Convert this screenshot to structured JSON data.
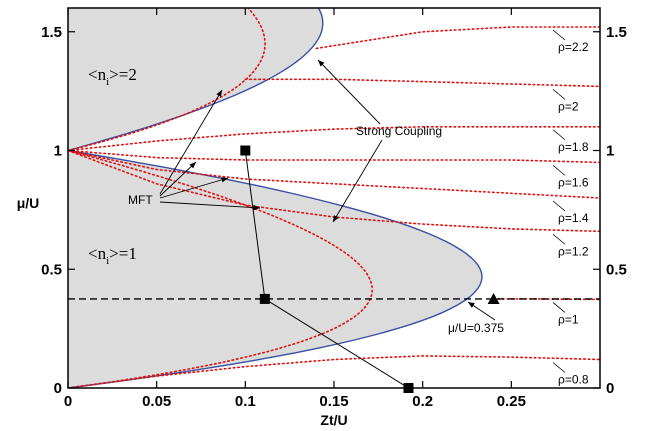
{
  "chart_data": {
    "type": "line",
    "xlabel": "Zt/U",
    "ylabel": "μ/U",
    "xlim": [
      0,
      0.3
    ],
    "ylim": [
      0,
      1.6
    ],
    "xticks": [
      "0",
      "0.05",
      "0.1",
      "0.15",
      "0.2",
      "0.25"
    ],
    "yticks": [
      "0",
      "0.5",
      "1",
      "1.5"
    ],
    "colors": {
      "boundary": "#3a4fa0",
      "mft": "#e01010",
      "mott_fill": "#dcdcdc",
      "markers": "#000000"
    },
    "mott_lobes": [
      {
        "label_main": "<n",
        "label_sub": "i",
        "label_rest": ">=1",
        "mu_range": [
          0,
          1
        ],
        "tip": [
          0.24,
          0.375
        ]
      },
      {
        "label_main": "<n",
        "label_sub": "i",
        "label_rest": ">=2",
        "mu_range": [
          1,
          2
        ],
        "tip": [
          0.14,
          1.43
        ]
      }
    ],
    "mft_lobes": [
      {
        "mu_range": [
          0,
          1
        ],
        "tip_zt": 0.1716
      },
      {
        "mu_range": [
          1,
          2
        ],
        "tip_zt": 0.1
      }
    ],
    "rho_contours": [
      {
        "label": "ρ=0.8",
        "x": [
          0,
          0.05,
          0.1,
          0.15,
          0.2,
          0.25,
          0.3
        ],
        "y": [
          0.0,
          0.05,
          0.09,
          0.12,
          0.135,
          0.13,
          0.12
        ]
      },
      {
        "label": "ρ=1",
        "x": [
          0.24,
          0.26,
          0.28,
          0.3
        ],
        "y": [
          0.375,
          0.375,
          0.374,
          0.373
        ]
      },
      {
        "label": "ρ=1.2",
        "x": [
          0,
          0.05,
          0.1,
          0.15,
          0.2,
          0.25,
          0.3
        ],
        "y": [
          1.0,
          0.86,
          0.77,
          0.72,
          0.69,
          0.67,
          0.66
        ]
      },
      {
        "label": "ρ=1.4",
        "x": [
          0,
          0.05,
          0.1,
          0.15,
          0.2,
          0.25,
          0.3
        ],
        "y": [
          1.0,
          0.92,
          0.88,
          0.86,
          0.84,
          0.82,
          0.8
        ]
      },
      {
        "label": "ρ=1.6",
        "x": [
          0,
          0.05,
          0.1,
          0.15,
          0.2,
          0.25,
          0.3
        ],
        "y": [
          1.0,
          0.97,
          0.96,
          0.96,
          0.96,
          0.96,
          0.95
        ]
      },
      {
        "label": "ρ=1.8",
        "x": [
          0,
          0.05,
          0.1,
          0.15,
          0.2,
          0.25,
          0.3
        ],
        "y": [
          1.0,
          1.04,
          1.07,
          1.09,
          1.1,
          1.1,
          1.1
        ]
      },
      {
        "label": "ρ=2",
        "x": [
          0.1,
          0.15,
          0.2,
          0.25,
          0.3
        ],
        "y": [
          1.3,
          1.3,
          1.29,
          1.28,
          1.27
        ]
      },
      {
        "label": "ρ=2.2",
        "x": [
          0.14,
          0.2,
          0.25,
          0.3
        ],
        "y": [
          1.43,
          1.5,
          1.52,
          1.52
        ]
      }
    ],
    "dashed_line": {
      "y": 0.375,
      "label": "μ/U=0.375"
    },
    "path_points": [
      {
        "x": 0.1,
        "y": 1.0
      },
      {
        "x": 0.111,
        "y": 0.375
      },
      {
        "x": 0.192,
        "y": 0.0
      }
    ],
    "triangle_point": {
      "x": 0.24,
      "y": 0.375
    },
    "annotations": {
      "strong_coupling": "Strong Coupling",
      "mft": "MFT",
      "mu_eq": "μ/U=0.375"
    }
  }
}
